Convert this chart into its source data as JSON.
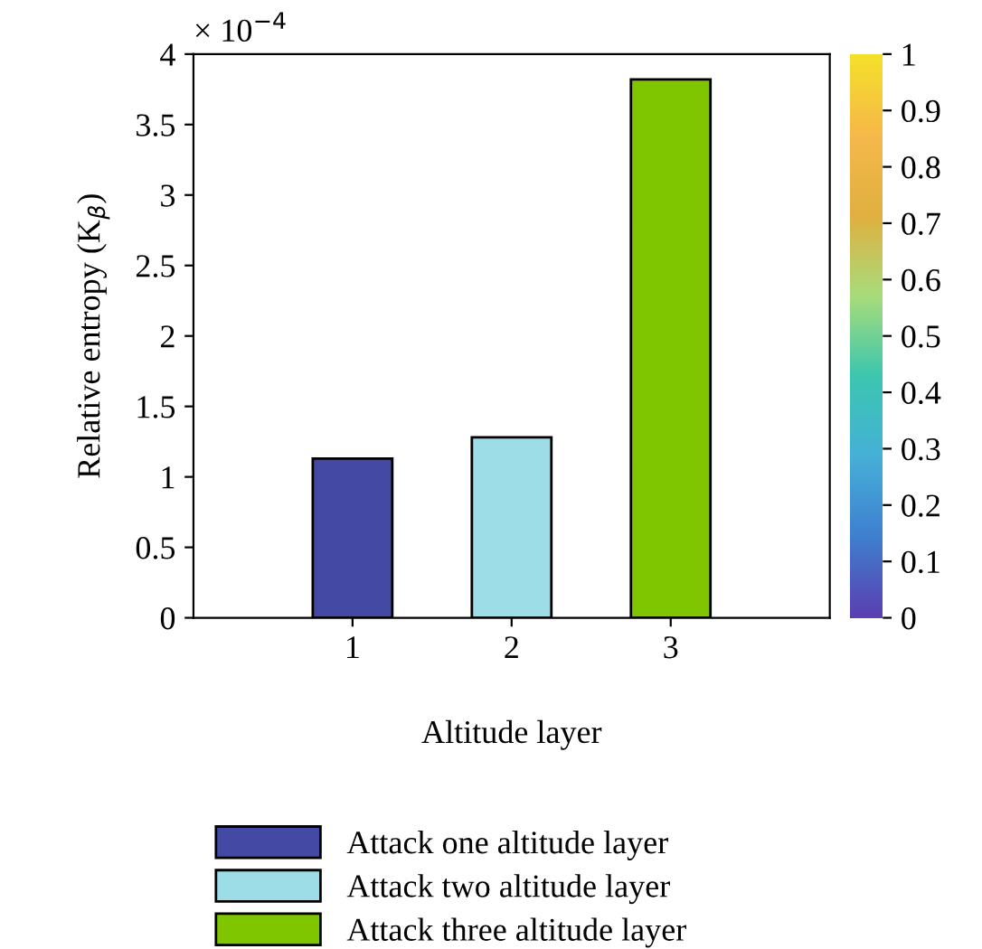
{
  "chart_data": {
    "type": "bar",
    "xlabel": "Altitude layer",
    "ylabel": "Relative entropy (K$_{β}$)",
    "annotations": [
      "× 10$^{−4}$"
    ],
    "categories": [
      "1",
      "2",
      "3"
    ],
    "series": [
      {
        "name": "Attack one altitude layer",
        "color": "#4449a4",
        "values": [
          1.13,
          null,
          null
        ]
      },
      {
        "name": "Attack two altitude layer",
        "color": "#9cdde8",
        "values": [
          null,
          1.28,
          null
        ]
      },
      {
        "name": "Attack three altitude layer",
        "color": "#7fc600",
        "values": [
          null,
          null,
          3.82
        ]
      }
    ],
    "ylim": [
      0,
      4
    ],
    "yticks": [
      0,
      0.5,
      1,
      1.5,
      2,
      2.5,
      3,
      3.5,
      4
    ],
    "clim": [
      0,
      1
    ],
    "cticks": [
      0,
      0.1,
      0.2,
      0.3,
      0.4,
      0.5,
      0.6,
      0.7,
      0.8,
      0.9,
      1
    ],
    "legend": "bottom",
    "grid": false
  }
}
